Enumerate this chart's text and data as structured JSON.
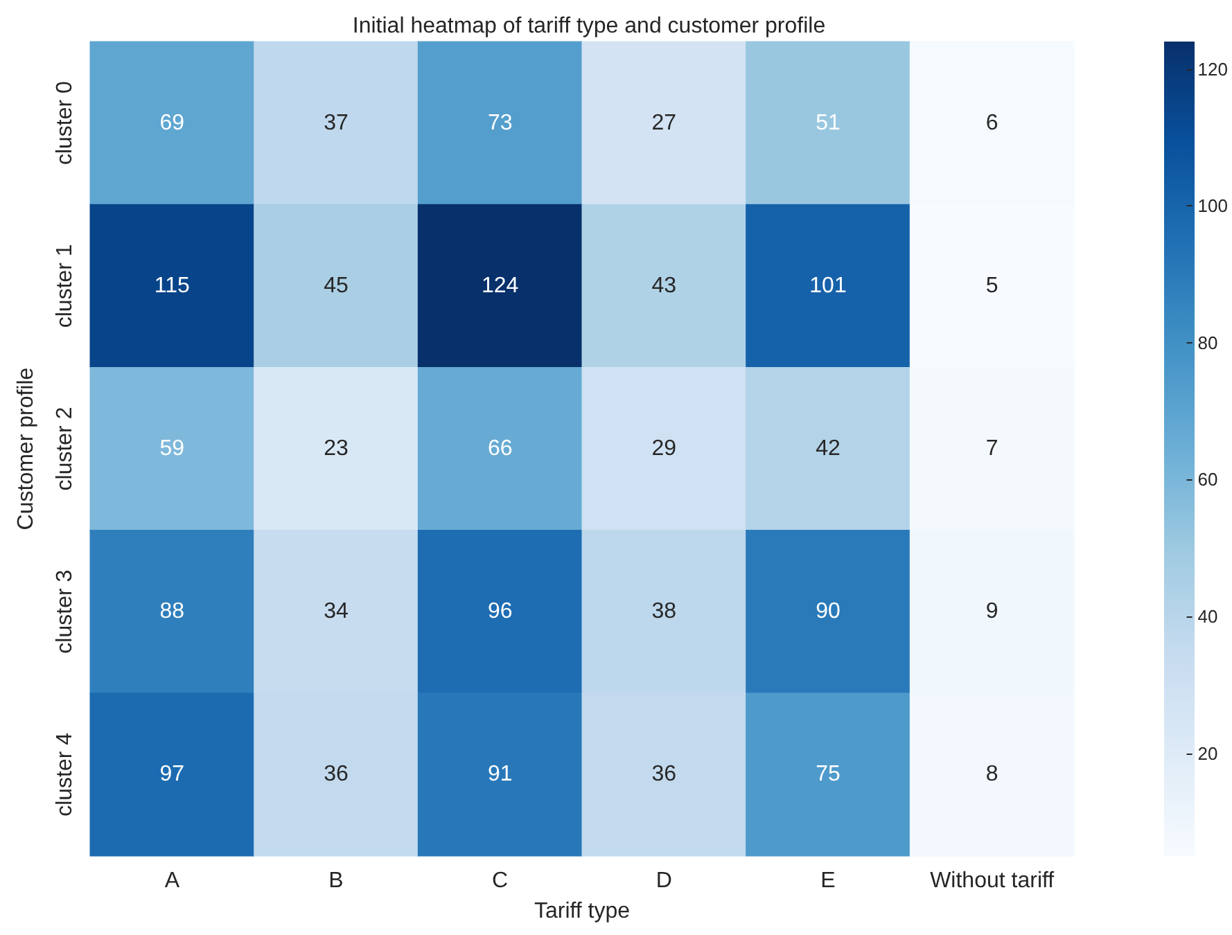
{
  "chart_data": {
    "type": "heatmap",
    "title": "Initial heatmap of tariff type and customer profile",
    "xlabel": "Tariff type",
    "ylabel": "Customer profile",
    "categories": [
      "A",
      "B",
      "C",
      "D",
      "E",
      "Without tariff"
    ],
    "y_categories": [
      "cluster 0",
      "cluster 1",
      "cluster 2",
      "cluster 3",
      "cluster 4"
    ],
    "cells": [
      [
        69,
        37,
        73,
        27,
        51,
        6
      ],
      [
        115,
        45,
        124,
        43,
        101,
        5
      ],
      [
        59,
        23,
        66,
        29,
        42,
        7
      ],
      [
        88,
        34,
        96,
        38,
        90,
        9
      ],
      [
        97,
        36,
        91,
        36,
        75,
        8
      ]
    ],
    "data_labels": true,
    "clim": [
      5,
      124
    ],
    "cticks": [
      20,
      40,
      60,
      80,
      100,
      120
    ]
  }
}
